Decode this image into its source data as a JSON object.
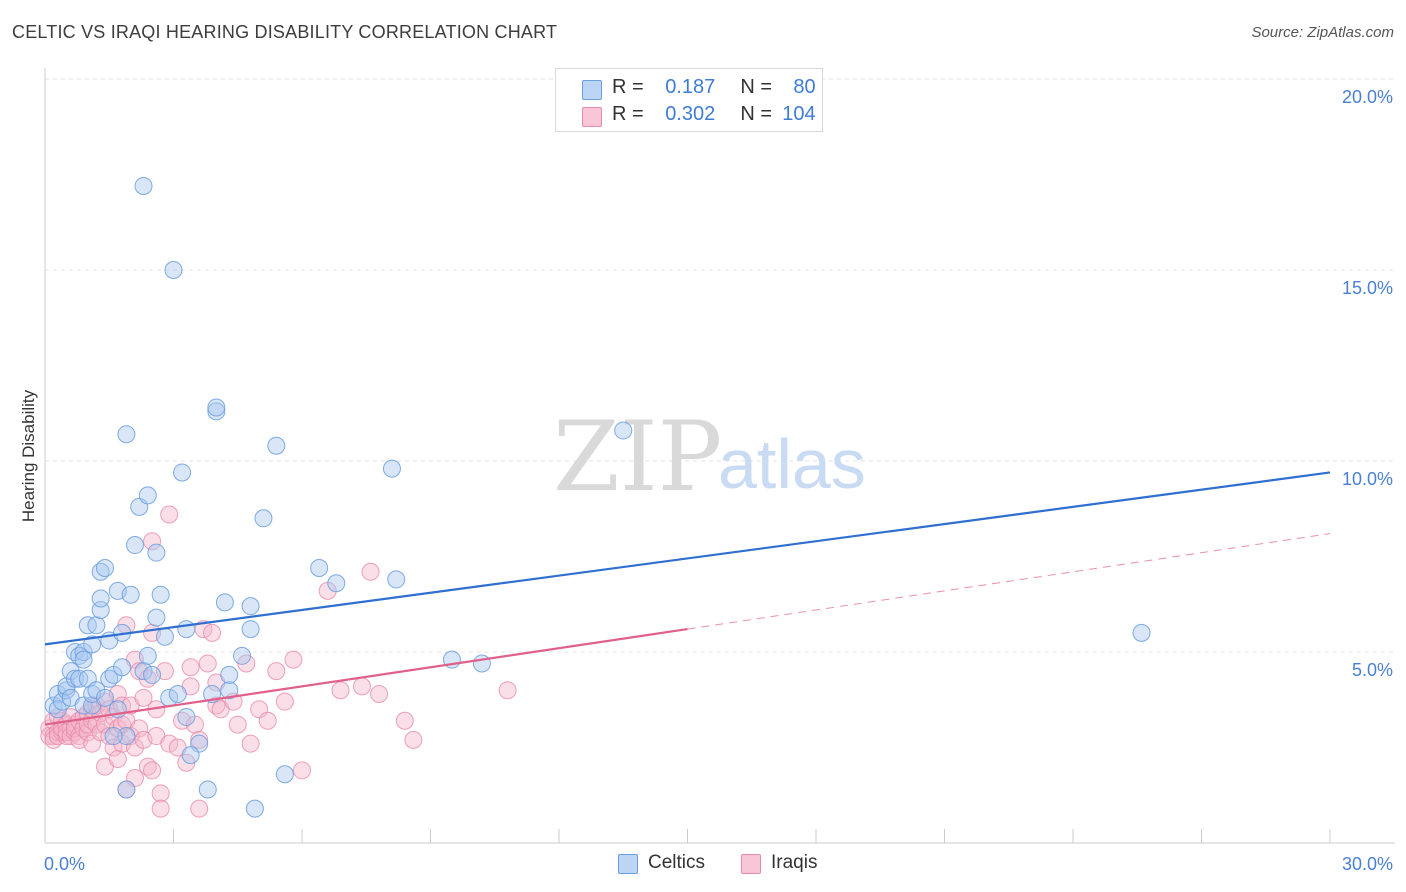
{
  "title": "CELTIC VS IRAQI HEARING DISABILITY CORRELATION CHART",
  "source": "Source: ZipAtlas.com",
  "watermark": {
    "zip": "ZIP",
    "atlas": "atlas"
  },
  "legend": {
    "rows": [
      {
        "r_label": "R =",
        "r_value": "0.187",
        "n_label": "N =",
        "n_value": "80"
      },
      {
        "r_label": "R =",
        "r_value": "0.302",
        "n_label": "N =",
        "n_value": "104"
      }
    ]
  },
  "bottom_legend": {
    "celtics": "Celtics",
    "iraqis": "Iraqis"
  },
  "colors": {
    "celtics_fill": "#a8c8f0",
    "celtics_stroke": "#6a9ee0",
    "celtics_line": "#2f6fd0",
    "iraqis_fill": "#f5b8cc",
    "iraqis_stroke": "#ea8aab",
    "iraqis_line": "#e0608a"
  },
  "chart_data": {
    "type": "scatter",
    "title": "CELTIC VS IRAQI HEARING DISABILITY CORRELATION CHART",
    "xlabel": "",
    "ylabel": "Hearing Disability",
    "xlim": [
      0,
      30
    ],
    "ylim": [
      0,
      20
    ],
    "x_tick_labels": [
      "0.0%",
      "30.0%"
    ],
    "y_ticks": [
      5,
      10,
      15,
      20
    ],
    "y_tick_labels": [
      "5.0%",
      "10.0%",
      "15.0%",
      "20.0%"
    ],
    "grid": true,
    "legend_position": "top-center",
    "series": [
      {
        "name": "Celtics",
        "R": 0.187,
        "N": 80,
        "trend": {
          "x": [
            0,
            30
          ],
          "y": [
            5.2,
            9.7
          ]
        },
        "points": [
          [
            0.2,
            3.6
          ],
          [
            0.3,
            3.9
          ],
          [
            0.3,
            3.5
          ],
          [
            0.4,
            3.7
          ],
          [
            0.5,
            4.0
          ],
          [
            0.5,
            4.1
          ],
          [
            0.6,
            4.5
          ],
          [
            0.6,
            3.8
          ],
          [
            0.7,
            5.0
          ],
          [
            0.7,
            4.3
          ],
          [
            0.8,
            4.9
          ],
          [
            0.8,
            4.3
          ],
          [
            0.9,
            5.0
          ],
          [
            0.9,
            4.8
          ],
          [
            0.9,
            3.6
          ],
          [
            1.0,
            4.3
          ],
          [
            1.0,
            5.7
          ],
          [
            1.1,
            3.6
          ],
          [
            1.1,
            5.2
          ],
          [
            1.2,
            5.7
          ],
          [
            1.1,
            3.9
          ],
          [
            1.2,
            4.0
          ],
          [
            1.3,
            6.1
          ],
          [
            1.3,
            6.4
          ],
          [
            1.3,
            7.1
          ],
          [
            1.4,
            3.8
          ],
          [
            1.5,
            4.3
          ],
          [
            1.5,
            5.3
          ],
          [
            1.4,
            7.2
          ],
          [
            1.6,
            4.4
          ],
          [
            1.7,
            3.5
          ],
          [
            1.7,
            6.6
          ],
          [
            1.8,
            4.6
          ],
          [
            1.8,
            5.5
          ],
          [
            1.9,
            10.7
          ],
          [
            1.9,
            2.8
          ],
          [
            2.0,
            6.5
          ],
          [
            1.9,
            1.4
          ],
          [
            2.1,
            7.8
          ],
          [
            2.2,
            8.8
          ],
          [
            2.3,
            4.5
          ],
          [
            2.4,
            9.1
          ],
          [
            2.4,
            4.9
          ],
          [
            2.5,
            4.4
          ],
          [
            2.6,
            5.9
          ],
          [
            2.6,
            7.6
          ],
          [
            2.7,
            6.5
          ],
          [
            2.3,
            17.2
          ],
          [
            2.8,
            5.4
          ],
          [
            3.0,
            15.0
          ],
          [
            2.9,
            3.8
          ],
          [
            3.1,
            3.9
          ],
          [
            3.2,
            9.7
          ],
          [
            3.3,
            3.3
          ],
          [
            3.3,
            5.6
          ],
          [
            3.6,
            2.6
          ],
          [
            3.9,
            3.9
          ],
          [
            4.0,
            11.3
          ],
          [
            4.0,
            11.4
          ],
          [
            4.2,
            6.3
          ],
          [
            4.3,
            4.0
          ],
          [
            4.3,
            4.4
          ],
          [
            4.6,
            4.9
          ],
          [
            4.8,
            5.6
          ],
          [
            4.8,
            6.2
          ],
          [
            5.1,
            8.5
          ],
          [
            5.4,
            10.4
          ],
          [
            5.6,
            1.8
          ],
          [
            4.9,
            0.9
          ],
          [
            3.8,
            1.4
          ],
          [
            3.4,
            2.3
          ],
          [
            6.4,
            7.2
          ],
          [
            6.8,
            6.8
          ],
          [
            8.1,
            9.8
          ],
          [
            8.2,
            6.9
          ],
          [
            9.5,
            4.8
          ],
          [
            10.2,
            4.7
          ],
          [
            13.5,
            10.8
          ],
          [
            25.6,
            5.5
          ],
          [
            1.6,
            2.8
          ]
        ]
      },
      {
        "name": "Iraqis",
        "R": 0.302,
        "N": 104,
        "trend": {
          "x": [
            0,
            15
          ],
          "y": [
            3.1,
            5.6
          ]
        },
        "trend_extension": {
          "x": [
            15,
            30
          ],
          "y": [
            5.6,
            8.1
          ]
        },
        "points": [
          [
            0.1,
            3.0
          ],
          [
            0.1,
            2.8
          ],
          [
            0.2,
            3.2
          ],
          [
            0.2,
            2.8
          ],
          [
            0.2,
            2.7
          ],
          [
            0.3,
            3.3
          ],
          [
            0.3,
            2.9
          ],
          [
            0.3,
            2.8
          ],
          [
            0.4,
            3.2
          ],
          [
            0.4,
            2.9
          ],
          [
            0.4,
            3.0
          ],
          [
            0.5,
            3.1
          ],
          [
            0.5,
            2.8
          ],
          [
            0.5,
            2.9
          ],
          [
            0.6,
            3.0
          ],
          [
            0.6,
            3.3
          ],
          [
            0.6,
            2.8
          ],
          [
            0.7,
            2.9
          ],
          [
            0.7,
            3.1
          ],
          [
            0.7,
            3.0
          ],
          [
            0.8,
            2.8
          ],
          [
            0.8,
            3.2
          ],
          [
            0.8,
            2.7
          ],
          [
            0.9,
            3.0
          ],
          [
            0.9,
            3.3
          ],
          [
            1.0,
            2.9
          ],
          [
            1.0,
            3.1
          ],
          [
            1.0,
            3.4
          ],
          [
            1.1,
            3.2
          ],
          [
            1.1,
            3.5
          ],
          [
            1.1,
            2.6
          ],
          [
            1.2,
            3.1
          ],
          [
            1.2,
            3.6
          ],
          [
            1.3,
            2.9
          ],
          [
            1.3,
            3.4
          ],
          [
            1.4,
            3.1
          ],
          [
            1.4,
            3.7
          ],
          [
            1.5,
            3.5
          ],
          [
            1.5,
            2.8
          ],
          [
            1.4,
            2.0
          ],
          [
            1.6,
            3.3
          ],
          [
            1.6,
            2.5
          ],
          [
            1.7,
            3.9
          ],
          [
            1.7,
            3.0
          ],
          [
            1.7,
            2.2
          ],
          [
            1.8,
            3.6
          ],
          [
            1.8,
            2.6
          ],
          [
            1.8,
            3.1
          ],
          [
            1.9,
            5.7
          ],
          [
            1.9,
            3.2
          ],
          [
            1.9,
            1.4
          ],
          [
            2.0,
            3.6
          ],
          [
            2.0,
            2.8
          ],
          [
            2.1,
            4.8
          ],
          [
            2.1,
            2.5
          ],
          [
            2.1,
            1.7
          ],
          [
            2.2,
            3.0
          ],
          [
            2.2,
            4.5
          ],
          [
            2.3,
            3.8
          ],
          [
            2.3,
            2.7
          ],
          [
            2.4,
            4.3
          ],
          [
            2.4,
            2.0
          ],
          [
            2.5,
            7.9
          ],
          [
            2.5,
            5.5
          ],
          [
            2.5,
            1.9
          ],
          [
            2.6,
            2.8
          ],
          [
            2.6,
            3.5
          ],
          [
            2.7,
            1.3
          ],
          [
            2.7,
            0.9
          ],
          [
            2.8,
            4.5
          ],
          [
            2.9,
            8.6
          ],
          [
            2.9,
            2.6
          ],
          [
            3.1,
            2.5
          ],
          [
            3.2,
            3.2
          ],
          [
            3.3,
            2.1
          ],
          [
            3.4,
            4.1
          ],
          [
            3.4,
            4.6
          ],
          [
            3.5,
            3.1
          ],
          [
            3.6,
            2.7
          ],
          [
            3.6,
            0.9
          ],
          [
            3.7,
            5.6
          ],
          [
            3.8,
            4.7
          ],
          [
            3.9,
            5.5
          ],
          [
            4.0,
            3.6
          ],
          [
            4.0,
            4.2
          ],
          [
            4.1,
            3.5
          ],
          [
            4.4,
            3.7
          ],
          [
            4.5,
            3.1
          ],
          [
            4.7,
            4.7
          ],
          [
            4.8,
            2.6
          ],
          [
            5.0,
            3.5
          ],
          [
            5.2,
            3.2
          ],
          [
            5.4,
            4.5
          ],
          [
            5.6,
            3.7
          ],
          [
            5.8,
            4.8
          ],
          [
            6.0,
            1.9
          ],
          [
            6.6,
            6.6
          ],
          [
            6.9,
            4.0
          ],
          [
            7.4,
            4.1
          ],
          [
            7.6,
            7.1
          ],
          [
            7.8,
            3.9
          ],
          [
            8.4,
            3.2
          ],
          [
            8.6,
            2.7
          ],
          [
            10.8,
            4.0
          ]
        ]
      }
    ]
  }
}
